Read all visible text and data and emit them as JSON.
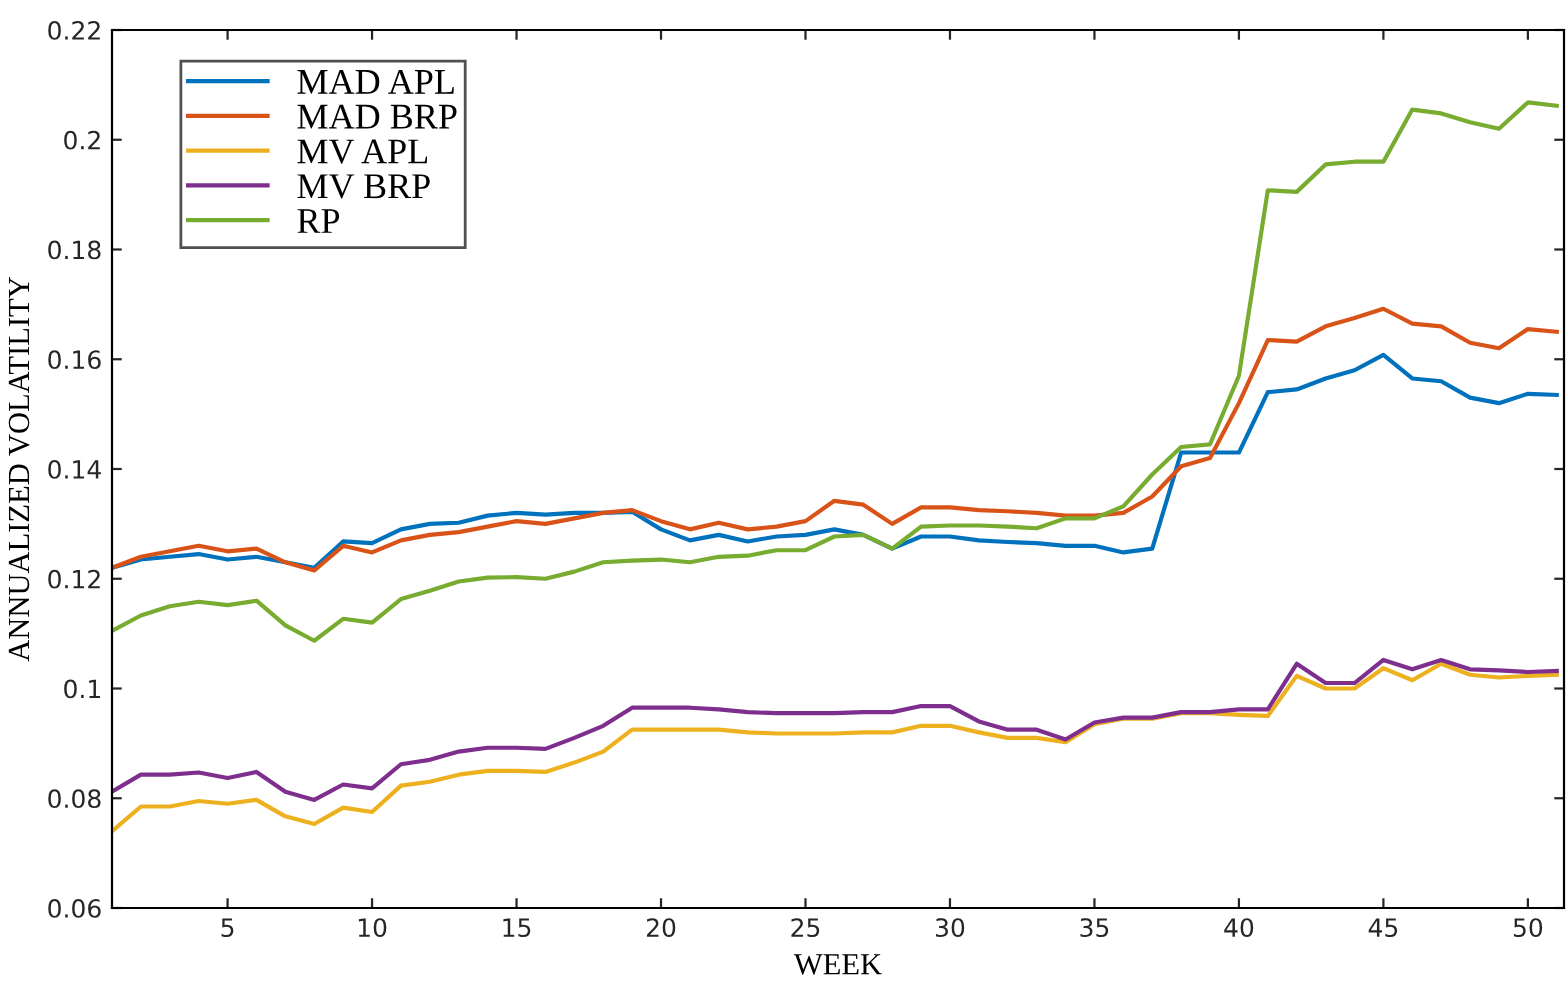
{
  "chart_data": {
    "type": "line",
    "xlabel": "WEEK",
    "ylabel": "ANNUALIZED VOLATILITY",
    "x": [
      1,
      2,
      3,
      4,
      5,
      6,
      7,
      8,
      9,
      10,
      11,
      12,
      13,
      14,
      15,
      16,
      17,
      18,
      19,
      20,
      21,
      22,
      23,
      24,
      25,
      26,
      27,
      28,
      29,
      30,
      31,
      32,
      33,
      34,
      35,
      36,
      37,
      38,
      39,
      40,
      41,
      42,
      43,
      44,
      45,
      46,
      47,
      48,
      49,
      50,
      51
    ],
    "xlim": [
      1,
      51.25
    ],
    "xticks": [
      5,
      10,
      15,
      20,
      25,
      30,
      35,
      40,
      45,
      50
    ],
    "ylim": [
      0.06,
      0.22
    ],
    "yticks": [
      0.06,
      0.08,
      {
        "value": 0.1,
        "label": "0.1"
      },
      0.12,
      0.14,
      0.16,
      0.18,
      {
        "value": 0.2,
        "label": "0.2"
      },
      0.22
    ],
    "grid": false,
    "legend": "top left",
    "marker": "none",
    "line_style": "solid",
    "series": [
      {
        "name": "MAD APL",
        "color": "#0072bd",
        "values": [
          0.122,
          0.1235,
          0.124,
          0.1245,
          0.1235,
          0.124,
          0.123,
          0.122,
          0.1268,
          0.1265,
          0.129,
          0.13,
          0.1302,
          0.1315,
          0.132,
          0.1317,
          0.132,
          0.132,
          0.1322,
          0.129,
          0.127,
          0.128,
          0.1268,
          0.1277,
          0.128,
          0.129,
          0.128,
          0.1255,
          0.1277,
          0.1277,
          0.127,
          0.1267,
          0.1265,
          0.126,
          0.126,
          0.1248,
          0.1255,
          0.143,
          0.143,
          0.143,
          0.154,
          0.1545,
          0.1565,
          0.158,
          0.1608,
          0.1565,
          0.156,
          0.153,
          0.152,
          0.1537,
          0.1535
        ]
      },
      {
        "name": "MAD BRP",
        "color": "#d95319",
        "values": [
          0.122,
          0.124,
          0.125,
          0.126,
          0.125,
          0.1255,
          0.123,
          0.1215,
          0.126,
          0.1248,
          0.127,
          0.128,
          0.1285,
          0.1295,
          0.1305,
          0.13,
          0.131,
          0.132,
          0.1325,
          0.1305,
          0.129,
          0.1302,
          0.129,
          0.1295,
          0.1305,
          0.1342,
          0.1335,
          0.13,
          0.133,
          0.133,
          0.1325,
          0.1323,
          0.132,
          0.1315,
          0.1315,
          0.132,
          0.135,
          0.1405,
          0.142,
          0.152,
          0.1635,
          0.1632,
          0.166,
          0.1675,
          0.1692,
          0.1665,
          0.166,
          0.163,
          0.162,
          0.1655,
          0.165
        ]
      },
      {
        "name": "MV APL",
        "color": "#edb120",
        "values": [
          0.074,
          0.0785,
          0.0785,
          0.0795,
          0.079,
          0.0797,
          0.0767,
          0.0753,
          0.0783,
          0.0775,
          0.0823,
          0.083,
          0.0843,
          0.085,
          0.085,
          0.0848,
          0.0865,
          0.0885,
          0.0925,
          0.0925,
          0.0925,
          0.0925,
          0.092,
          0.0918,
          0.0918,
          0.0918,
          0.092,
          0.092,
          0.0932,
          0.0932,
          0.092,
          0.091,
          0.091,
          0.0902,
          0.0935,
          0.0945,
          0.0945,
          0.0955,
          0.0955,
          0.0952,
          0.095,
          0.1023,
          0.1,
          0.1,
          0.1037,
          0.1015,
          0.1045,
          0.1025,
          0.102,
          0.1023,
          0.1025
        ]
      },
      {
        "name": "MV BRP",
        "color": "#7e2f8e",
        "values": [
          0.0812,
          0.0843,
          0.0843,
          0.0847,
          0.0837,
          0.0848,
          0.0812,
          0.0797,
          0.0825,
          0.0818,
          0.0862,
          0.087,
          0.0885,
          0.0892,
          0.0892,
          0.089,
          0.091,
          0.0932,
          0.0965,
          0.0965,
          0.0965,
          0.0962,
          0.0957,
          0.0955,
          0.0955,
          0.0955,
          0.0957,
          0.0957,
          0.0968,
          0.0968,
          0.094,
          0.0925,
          0.0925,
          0.0907,
          0.0938,
          0.0947,
          0.0947,
          0.0957,
          0.0957,
          0.0962,
          0.0962,
          0.1045,
          0.101,
          0.101,
          0.1052,
          0.1035,
          0.1052,
          0.1035,
          0.1033,
          0.103,
          0.1032
        ]
      },
      {
        "name": "RP",
        "color": "#77ac30",
        "values": [
          0.1105,
          0.1133,
          0.115,
          0.1158,
          0.1152,
          0.116,
          0.1115,
          0.1087,
          0.1127,
          0.112,
          0.1163,
          0.1178,
          0.1195,
          0.1202,
          0.1203,
          0.12,
          0.1213,
          0.123,
          0.1233,
          0.1235,
          0.123,
          0.124,
          0.1242,
          0.1252,
          0.1252,
          0.1277,
          0.128,
          0.1255,
          0.1295,
          0.1297,
          0.1297,
          0.1295,
          0.1292,
          0.131,
          0.131,
          0.1332,
          0.139,
          0.144,
          0.1445,
          0.157,
          0.1908,
          0.1905,
          0.1955,
          0.196,
          0.196,
          0.2055,
          0.2048,
          0.2032,
          0.202,
          0.2068,
          0.2062
        ]
      }
    ]
  }
}
